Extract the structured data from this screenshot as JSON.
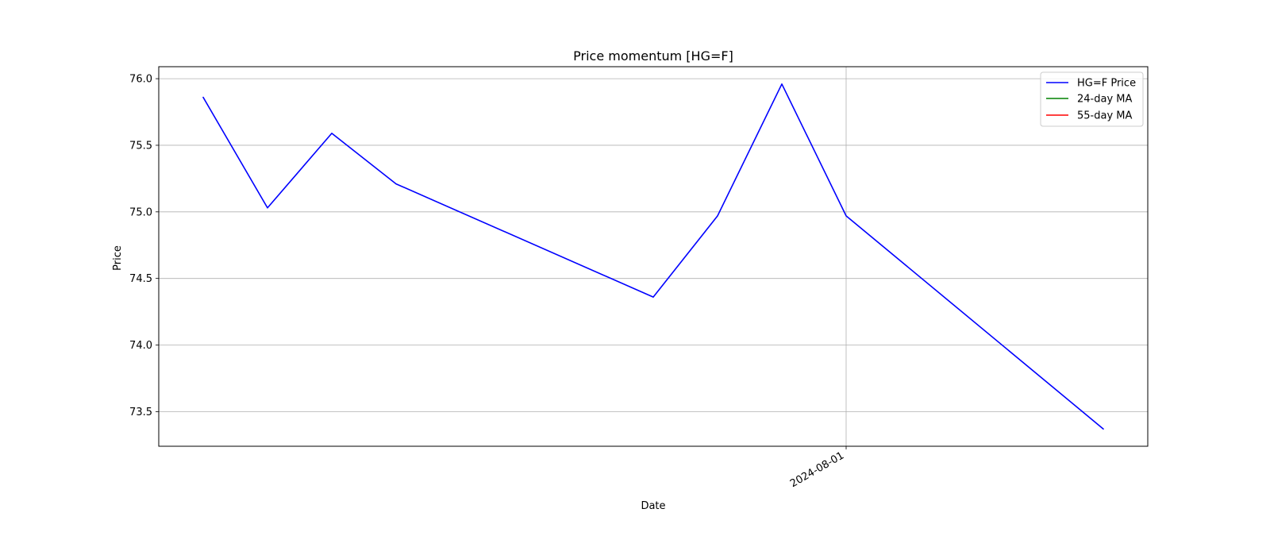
{
  "chart_data": {
    "type": "line",
    "title": "Price momentum [HG=F]",
    "xlabel": "Date",
    "ylabel": "Price",
    "x_tick_labels": [
      "2024-08-01"
    ],
    "y_ticks": [
      73.5,
      74.0,
      74.5,
      75.0,
      75.5,
      76.0
    ],
    "ylim": [
      73.24,
      76.09
    ],
    "xlim": [
      "2024-07-22",
      "2024-08-05"
    ],
    "grid": true,
    "legend_position": "top-right",
    "legend": [
      {
        "name": "HG=F Price",
        "color": "#0000ff"
      },
      {
        "name": "24-day MA",
        "color": "#008000"
      },
      {
        "name": "55-day MA",
        "color": "#ff0000"
      }
    ],
    "series": [
      {
        "name": "HG=F Price",
        "color": "#0000ff",
        "x": [
          "2024-07-22",
          "2024-07-23",
          "2024-07-24",
          "2024-07-25",
          "2024-07-26",
          "2024-07-29",
          "2024-07-30",
          "2024-07-31",
          "2024-08-01",
          "2024-08-05"
        ],
        "y": [
          75.86,
          75.03,
          75.59,
          75.21,
          null,
          74.36,
          74.97,
          75.96,
          74.97,
          73.37
        ]
      },
      {
        "name": "24-day MA",
        "color": "#008000",
        "x": [],
        "y": []
      },
      {
        "name": "55-day MA",
        "color": "#ff0000",
        "x": [],
        "y": []
      }
    ]
  }
}
